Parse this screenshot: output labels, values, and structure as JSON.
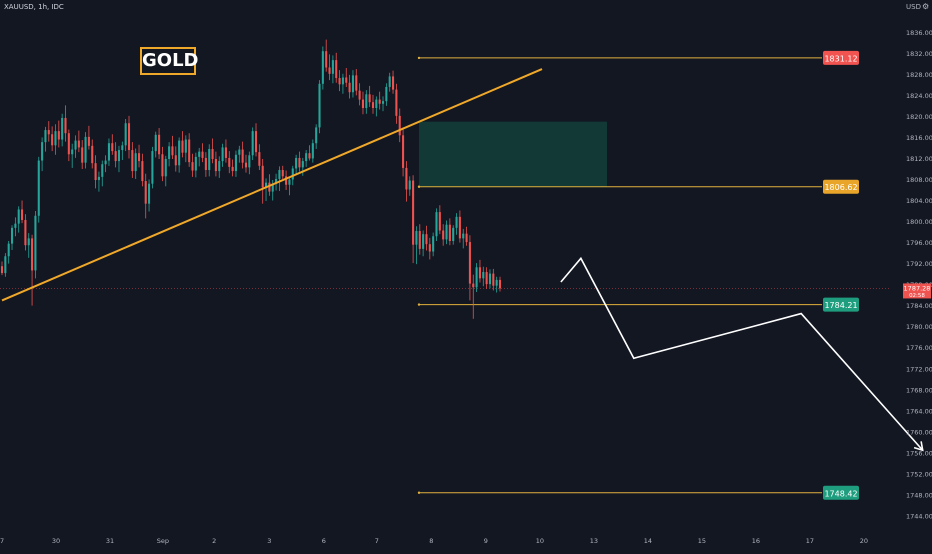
{
  "header": {
    "symbol": "XAUUSD, 1h, IDC",
    "currency": "USD",
    "badge": "GOLD"
  },
  "colors": {
    "background": "#131722",
    "bull": "#26a69a",
    "bear": "#ef5350",
    "trendline": "#f0a82a",
    "level_line": "#e2b13c",
    "zone": "#133b38",
    "projection": "#ffffff"
  },
  "icons": {
    "settings": "gear-icon"
  },
  "chart_data": {
    "type": "candlestick",
    "interval": "1h",
    "y_axis": {
      "ticks": [
        1836,
        1832,
        1828,
        1824,
        1820,
        1816,
        1812,
        1808,
        1804,
        1800,
        1796,
        1792,
        1788,
        1784,
        1780,
        1776,
        1772,
        1768,
        1764,
        1760,
        1756,
        1752,
        1748,
        1744
      ],
      "tick_labels": [
        "1836.00",
        "1832.00",
        "1828.00",
        "1824.00",
        "1820.00",
        "1816.00",
        "1812.00",
        "1808.00",
        "1804.00",
        "1800.00",
        "1796.00",
        "1792.00",
        "1788.00",
        "1784.00",
        "1780.00",
        "1776.00",
        "1772.00",
        "1768.00",
        "1764.00",
        "1760.00",
        "1756.00",
        "1752.00",
        "1748.00",
        "1744.00"
      ],
      "range": [
        1742,
        1838
      ]
    },
    "x_axis": {
      "tick_labels": [
        "7",
        "30",
        "31",
        "Sep",
        "2",
        "3",
        "6",
        "7",
        "8",
        "9",
        "10",
        "13",
        "14",
        "15",
        "16",
        "17",
        "20"
      ]
    },
    "current_price": {
      "value": "1787.28",
      "countdown": "02:58",
      "price": 1787.28
    },
    "levels": [
      {
        "label": "1831.12",
        "value": 1831.12,
        "color": "#f05350"
      },
      {
        "label": "1806.62",
        "value": 1806.62,
        "color": "#e8a52a"
      },
      {
        "label": "1784.21",
        "value": 1784.21,
        "color": "#1e9e7e"
      },
      {
        "label": "1748.42",
        "value": 1748.42,
        "color": "#1e9e7e"
      }
    ],
    "zone": {
      "low": 1806.62,
      "high": 1819.0
    },
    "trendline": {
      "from": [
        -1.0,
        1785.0
      ],
      "to": [
        9.0,
        1829.0
      ]
    },
    "projection": [
      [
        9.35,
        1788.5
      ],
      [
        9.72,
        1793.0
      ],
      [
        10.7,
        1774.0
      ],
      [
        13.8,
        1782.5
      ],
      [
        16.05,
        1756.5
      ]
    ],
    "candles": [
      [
        1791.5,
        1792.4,
        1789.8,
        1790.2
      ],
      [
        1790.2,
        1794.0,
        1789.5,
        1793.4
      ],
      [
        1793.4,
        1796.3,
        1792.0,
        1795.8
      ],
      [
        1795.8,
        1799.3,
        1794.6,
        1798.8
      ],
      [
        1798.8,
        1800.8,
        1797.2,
        1799.6
      ],
      [
        1799.6,
        1802.9,
        1797.9,
        1802.3
      ],
      [
        1802.3,
        1804.0,
        1799.7,
        1800.3
      ],
      [
        1800.3,
        1801.4,
        1794.5,
        1795.5
      ],
      [
        1795.5,
        1797.8,
        1793.1,
        1796.8
      ],
      [
        1796.8,
        1797.5,
        1784.0,
        1790.7
      ],
      [
        1790.7,
        1802.0,
        1789.2,
        1801.1
      ],
      [
        1801.1,
        1812.3,
        1799.8,
        1811.6
      ],
      [
        1811.6,
        1816.0,
        1809.6,
        1815.1
      ],
      [
        1815.1,
        1818.0,
        1813.3,
        1817.4
      ],
      [
        1817.4,
        1819.1,
        1815.2,
        1816.6
      ],
      [
        1816.6,
        1818.1,
        1813.4,
        1814.5
      ],
      [
        1814.5,
        1818.5,
        1812.7,
        1817.2
      ],
      [
        1817.2,
        1819.2,
        1814.1,
        1815.6
      ],
      [
        1815.6,
        1820.5,
        1814.3,
        1819.7
      ],
      [
        1819.7,
        1822.1,
        1815.2,
        1816.8
      ],
      [
        1816.8,
        1817.5,
        1811.5,
        1812.8
      ],
      [
        1812.8,
        1814.8,
        1810.2,
        1813.7
      ],
      [
        1813.7,
        1816.4,
        1812.1,
        1815.4
      ],
      [
        1815.4,
        1817.3,
        1813.2,
        1814.1
      ],
      [
        1814.1,
        1815.5,
        1810.0,
        1811.2
      ],
      [
        1811.2,
        1817.0,
        1810.1,
        1816.1
      ],
      [
        1816.1,
        1818.2,
        1813.7,
        1814.4
      ],
      [
        1814.4,
        1815.6,
        1810.1,
        1811.1
      ],
      [
        1811.1,
        1812.6,
        1806.3,
        1807.9
      ],
      [
        1807.9,
        1809.5,
        1805.7,
        1808.5
      ],
      [
        1808.5,
        1811.6,
        1806.7,
        1810.9
      ],
      [
        1810.9,
        1812.6,
        1809.4,
        1811.6
      ],
      [
        1811.6,
        1815.8,
        1810.6,
        1814.9
      ],
      [
        1814.9,
        1816.6,
        1812.7,
        1813.4
      ],
      [
        1813.4,
        1815.1,
        1810.3,
        1811.5
      ],
      [
        1811.5,
        1814.4,
        1809.4,
        1813.6
      ],
      [
        1813.6,
        1815.2,
        1811.7,
        1814.5
      ],
      [
        1814.5,
        1819.5,
        1813.4,
        1818.7
      ],
      [
        1818.7,
        1820.1,
        1812.0,
        1813.6
      ],
      [
        1813.6,
        1815.1,
        1808.3,
        1809.6
      ],
      [
        1809.6,
        1813.9,
        1808.1,
        1813.0
      ],
      [
        1813.0,
        1814.6,
        1810.3,
        1811.5
      ],
      [
        1811.5,
        1812.9,
        1806.7,
        1807.7
      ],
      [
        1807.7,
        1809.1,
        1800.6,
        1803.4
      ],
      [
        1803.4,
        1808.0,
        1801.9,
        1807.2
      ],
      [
        1807.2,
        1814.2,
        1806.3,
        1813.4
      ],
      [
        1813.4,
        1817.1,
        1812.2,
        1816.5
      ],
      [
        1816.5,
        1817.8,
        1811.9,
        1812.8
      ],
      [
        1812.8,
        1814.2,
        1807.7,
        1808.6
      ],
      [
        1808.6,
        1812.5,
        1806.7,
        1811.9
      ],
      [
        1811.9,
        1815.1,
        1810.5,
        1814.3
      ],
      [
        1814.3,
        1816.3,
        1811.9,
        1812.6
      ],
      [
        1812.6,
        1814.3,
        1809.5,
        1810.7
      ],
      [
        1810.7,
        1816.0,
        1809.3,
        1815.4
      ],
      [
        1815.4,
        1817.2,
        1812.2,
        1813.1
      ],
      [
        1813.1,
        1816.4,
        1811.3,
        1815.6
      ],
      [
        1815.6,
        1816.8,
        1810.4,
        1811.3
      ],
      [
        1811.3,
        1812.9,
        1808.5,
        1809.7
      ],
      [
        1809.7,
        1813.1,
        1808.4,
        1812.3
      ],
      [
        1812.3,
        1814.0,
        1810.5,
        1813.3
      ],
      [
        1813.3,
        1814.9,
        1811.3,
        1812.1
      ],
      [
        1812.1,
        1813.2,
        1808.5,
        1809.8
      ],
      [
        1809.8,
        1814.7,
        1808.6,
        1813.8
      ],
      [
        1813.8,
        1815.8,
        1811.1,
        1811.9
      ],
      [
        1811.9,
        1813.3,
        1808.6,
        1809.6
      ],
      [
        1809.6,
        1812.4,
        1808.3,
        1811.5
      ],
      [
        1811.5,
        1814.8,
        1810.4,
        1814.1
      ],
      [
        1814.1,
        1815.6,
        1811.2,
        1812.1
      ],
      [
        1812.1,
        1813.4,
        1809.2,
        1810.4
      ],
      [
        1810.4,
        1811.8,
        1808.6,
        1809.6
      ],
      [
        1809.6,
        1813.5,
        1808.5,
        1812.7
      ],
      [
        1812.7,
        1814.4,
        1811.2,
        1813.7
      ],
      [
        1813.7,
        1815.2,
        1810.1,
        1811.2
      ],
      [
        1811.2,
        1812.7,
        1809.3,
        1810.3
      ],
      [
        1810.3,
        1813.3,
        1809.0,
        1812.6
      ],
      [
        1812.6,
        1817.9,
        1811.7,
        1817.2
      ],
      [
        1817.2,
        1818.7,
        1812.4,
        1813.2
      ],
      [
        1813.2,
        1814.7,
        1809.8,
        1810.6
      ],
      [
        1810.6,
        1811.9,
        1803.4,
        1806.5
      ],
      [
        1806.5,
        1808.2,
        1803.9,
        1807.4
      ],
      [
        1807.4,
        1809.0,
        1804.9,
        1805.7
      ],
      [
        1805.7,
        1807.9,
        1804.0,
        1807.2
      ],
      [
        1807.2,
        1809.1,
        1805.9,
        1808.1
      ],
      [
        1808.1,
        1810.5,
        1805.8,
        1809.8
      ],
      [
        1809.8,
        1810.6,
        1807.8,
        1808.6
      ],
      [
        1808.6,
        1809.7,
        1806.0,
        1807.0
      ],
      [
        1807.0,
        1808.5,
        1805.0,
        1808.0
      ],
      [
        1808.0,
        1810.6,
        1806.9,
        1810.1
      ],
      [
        1810.1,
        1812.7,
        1808.9,
        1812.1
      ],
      [
        1812.1,
        1813.3,
        1809.5,
        1810.3
      ],
      [
        1810.3,
        1812.1,
        1808.7,
        1811.5
      ],
      [
        1811.5,
        1813.6,
        1810.4,
        1813.0
      ],
      [
        1813.0,
        1814.5,
        1811.6,
        1812.0
      ],
      [
        1812.0,
        1815.6,
        1811.2,
        1814.9
      ],
      [
        1814.9,
        1818.5,
        1813.8,
        1817.9
      ],
      [
        1817.9,
        1826.9,
        1816.8,
        1826.2
      ],
      [
        1826.2,
        1833.3,
        1825.1,
        1832.4
      ],
      [
        1832.4,
        1834.6,
        1828.5,
        1829.3
      ],
      [
        1829.3,
        1831.8,
        1826.9,
        1828.1
      ],
      [
        1828.1,
        1831.6,
        1826.3,
        1830.7
      ],
      [
        1830.7,
        1832.1,
        1826.4,
        1827.3
      ],
      [
        1827.3,
        1828.8,
        1824.8,
        1826.1
      ],
      [
        1826.1,
        1828.1,
        1824.3,
        1827.4
      ],
      [
        1827.4,
        1829.2,
        1825.6,
        1826.4
      ],
      [
        1826.4,
        1827.9,
        1823.4,
        1824.6
      ],
      [
        1824.6,
        1828.8,
        1823.6,
        1827.8
      ],
      [
        1827.8,
        1829.0,
        1824.0,
        1824.9
      ],
      [
        1824.9,
        1826.3,
        1822.1,
        1823.2
      ],
      [
        1823.2,
        1824.7,
        1820.4,
        1821.6
      ],
      [
        1821.6,
        1825.0,
        1820.5,
        1824.2
      ],
      [
        1824.2,
        1825.8,
        1821.8,
        1822.7
      ],
      [
        1822.7,
        1824.1,
        1820.5,
        1821.6
      ],
      [
        1821.6,
        1823.8,
        1820.0,
        1823.2
      ],
      [
        1823.2,
        1824.7,
        1821.3,
        1822.4
      ],
      [
        1822.4,
        1823.8,
        1821.0,
        1822.9
      ],
      [
        1822.9,
        1826.3,
        1822.0,
        1825.6
      ],
      [
        1825.6,
        1828.3,
        1824.7,
        1827.6
      ],
      [
        1827.6,
        1828.7,
        1824.3,
        1825.1
      ],
      [
        1825.1,
        1826.2,
        1818.6,
        1820.1
      ],
      [
        1820.1,
        1821.5,
        1815.1,
        1816.4
      ],
      [
        1816.4,
        1817.9,
        1808.6,
        1810.2
      ],
      [
        1810.2,
        1811.5,
        1803.8,
        1806.1
      ],
      [
        1806.1,
        1808.6,
        1804.9,
        1807.8
      ],
      [
        1807.8,
        1808.8,
        1792.1,
        1795.6
      ],
      [
        1795.6,
        1799.1,
        1791.9,
        1798.2
      ],
      [
        1798.2,
        1799.5,
        1793.7,
        1794.8
      ],
      [
        1794.8,
        1798.3,
        1793.4,
        1797.6
      ],
      [
        1797.6,
        1799.2,
        1794.5,
        1795.7
      ],
      [
        1795.7,
        1796.9,
        1792.8,
        1794.3
      ],
      [
        1794.3,
        1797.9,
        1793.4,
        1797.2
      ],
      [
        1797.2,
        1802.5,
        1796.3,
        1801.8
      ],
      [
        1801.8,
        1803.1,
        1797.6,
        1798.3
      ],
      [
        1798.3,
        1799.5,
        1795.4,
        1796.6
      ],
      [
        1796.6,
        1800.2,
        1795.7,
        1799.4
      ],
      [
        1799.4,
        1800.6,
        1795.5,
        1796.3
      ],
      [
        1796.3,
        1799.3,
        1795.6,
        1798.8
      ],
      [
        1798.8,
        1801.6,
        1797.5,
        1800.9
      ],
      [
        1800.9,
        1802.1,
        1796.0,
        1796.8
      ],
      [
        1796.8,
        1798.6,
        1794.9,
        1797.7
      ],
      [
        1797.7,
        1799.0,
        1795.4,
        1796.1
      ],
      [
        1796.1,
        1797.4,
        1785.0,
        1788.2
      ],
      [
        1788.2,
        1789.9,
        1781.5,
        1787.5
      ],
      [
        1787.5,
        1792.1,
        1786.6,
        1791.3
      ],
      [
        1791.3,
        1792.7,
        1788.4,
        1789.2
      ],
      [
        1789.2,
        1791.4,
        1787.7,
        1790.4
      ],
      [
        1790.4,
        1791.3,
        1787.2,
        1788.1
      ],
      [
        1788.1,
        1790.9,
        1787.3,
        1790.1
      ],
      [
        1790.1,
        1791.0,
        1786.9,
        1787.8
      ],
      [
        1787.8,
        1789.5,
        1786.5,
        1788.9
      ],
      [
        1788.9,
        1789.5,
        1786.7,
        1787.3
      ]
    ]
  }
}
